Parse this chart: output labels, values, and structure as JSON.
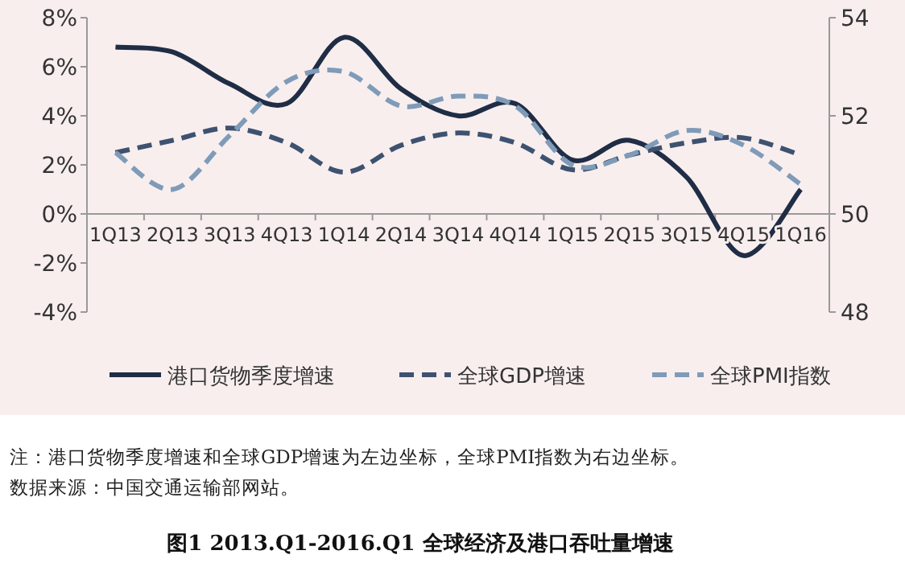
{
  "chart_data": {
    "type": "line",
    "title": "图1 2013.Q1-2016.Q1 全球经济及港口吞吐量增速",
    "categories": [
      "1Q13",
      "2Q13",
      "3Q13",
      "4Q13",
      "1Q14",
      "2Q14",
      "3Q14",
      "4Q14",
      "1Q15",
      "2Q15",
      "3Q15",
      "4Q15",
      "1Q16"
    ],
    "series": [
      {
        "name": "港口货物季度增速",
        "color": "#1f2d45",
        "line_style": "solid",
        "values": [
          6.8,
          6.6,
          5.3,
          4.5,
          7.2,
          5.1,
          4.0,
          4.5,
          2.2,
          3.0,
          1.5,
          -1.7,
          1.0
        ]
      },
      {
        "name": "全球GDP增速",
        "color": "#3e5270",
        "line_style": "dashed",
        "values": [
          2.5,
          3.0,
          3.5,
          2.9,
          1.7,
          2.8,
          3.3,
          2.9,
          1.8,
          2.4,
          2.9,
          3.1,
          2.4
        ]
      },
      {
        "name": "全球PMI指数",
        "color": "#7f9bb8",
        "line_style": "dashed",
        "axis": "y2",
        "values": [
          51.25,
          50.5,
          51.6,
          52.7,
          52.9,
          52.2,
          52.4,
          52.2,
          51.0,
          51.2,
          51.7,
          51.4,
          50.6
        ]
      }
    ],
    "ylim": [
      -4,
      8
    ],
    "yticks": [
      {
        "value": -4,
        "label": "-4%"
      },
      {
        "value": -2,
        "label": "-2%"
      },
      {
        "value": 0,
        "label": "0%"
      },
      {
        "value": 2,
        "label": "2%"
      },
      {
        "value": 4,
        "label": "4%"
      },
      {
        "value": 6,
        "label": "6%"
      },
      {
        "value": 8,
        "label": "8%"
      }
    ],
    "y2lim": [
      48,
      54
    ],
    "y2ticks": [
      48,
      50,
      52,
      54
    ],
    "legend": "bottom",
    "marker": "none",
    "annotations": [
      "注：港口货物季度增速和全球GDP增速为左边坐标，全球PMI指数为右边坐标。",
      "数据来源：中国交通运输部网站。"
    ]
  }
}
